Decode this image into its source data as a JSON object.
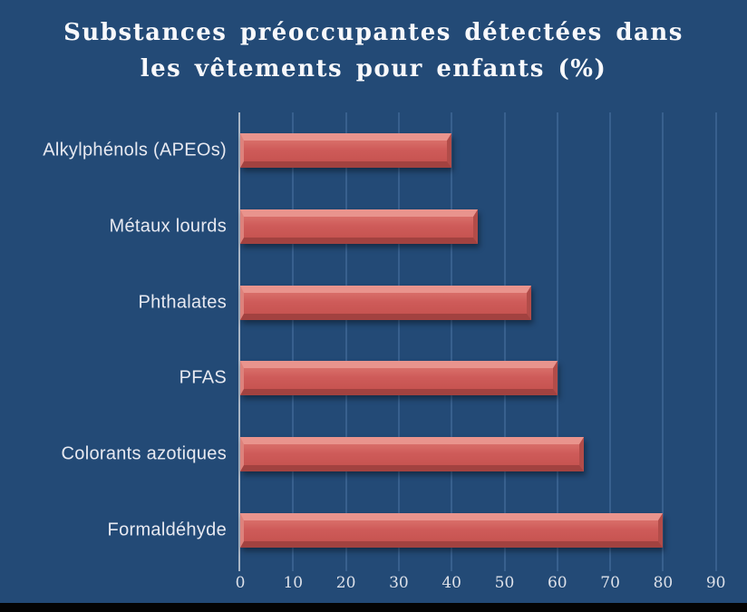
{
  "title": {
    "line1": "Substances préoccupantes détectées dans",
    "line2": "les vêtements pour enfants (%)"
  },
  "chart_data": {
    "type": "bar",
    "orientation": "horizontal",
    "title": "Substances préoccupantes détectées dans les vêtements pour enfants (%)",
    "categories": [
      "Alkylphénols (APEOs)",
      "Métaux lourds",
      "Phthalates",
      "PFAS",
      "Colorants azotiques",
      "Formaldéhyde"
    ],
    "values": [
      40,
      45,
      55,
      60,
      65,
      80
    ],
    "xlabel": "",
    "ylabel": "",
    "xlim": [
      0,
      95
    ],
    "x_ticks": [
      0,
      10,
      20,
      30,
      40,
      50,
      60,
      70,
      80,
      90
    ],
    "grid": "vertical-gridlines",
    "legend": "none",
    "colors": {
      "background": "#234A76",
      "bar": "#CE5B59",
      "bar_highlight": "#E9948D",
      "bar_shadow_edge": "#A24240",
      "gridline": "#38608E",
      "axis_line": "#A9B6C6",
      "category_text": "#E7E9F1",
      "tick_text": "#DDE1E9",
      "title_text": "#F7F8FB",
      "footer_strip": "#040404"
    }
  }
}
